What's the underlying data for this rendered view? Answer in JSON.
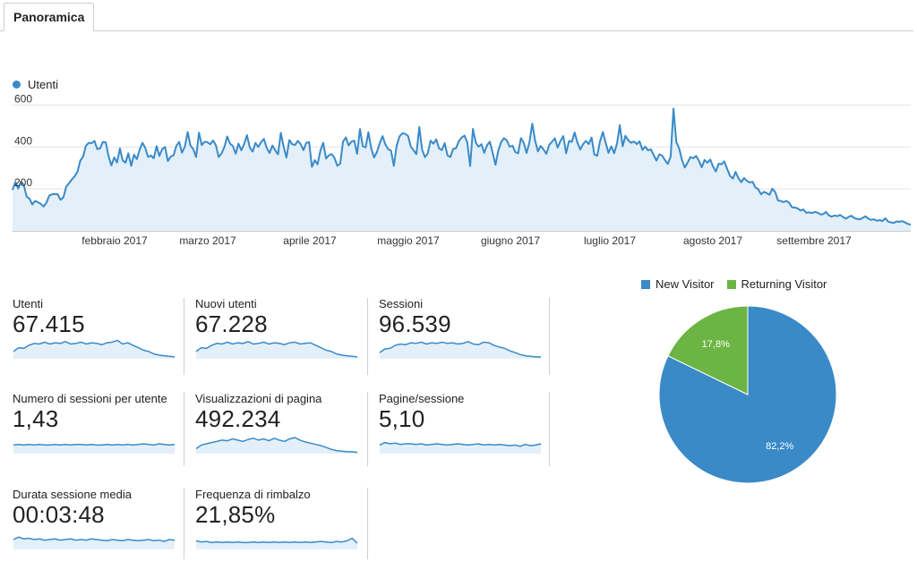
{
  "tab": {
    "label": "Panoramica"
  },
  "colors": {
    "accent": "#3a8ac8",
    "fill": "#e3f0f9",
    "grid": "#e3e3e3",
    "new_visitor": "#3a8ac8",
    "returning_visitor": "#6cb444"
  },
  "chart_data": [
    {
      "type": "line",
      "series": [
        {
          "name": "Utenti",
          "values": [
            195,
            233,
            202,
            234,
            219,
            163,
            153,
            126,
            143,
            136,
            129,
            116,
            134,
            168,
            174,
            176,
            174,
            148,
            160,
            210,
            227,
            245,
            260,
            282,
            335,
            355,
            406,
            420,
            418,
            429,
            390,
            393,
            424,
            422,
            356,
            312,
            350,
            326,
            393,
            336,
            325,
            370,
            310,
            363,
            342,
            386,
            420,
            395,
            353,
            359,
            346,
            404,
            357,
            390,
            400,
            333,
            354,
            360,
            405,
            424,
            373,
            401,
            471,
            406,
            389,
            352,
            468,
            409,
            425,
            423,
            413,
            431,
            408,
            352,
            370,
            400,
            450,
            416,
            405,
            368,
            416,
            384,
            414,
            456,
            398,
            378,
            419,
            400,
            423,
            438,
            395,
            371,
            407,
            384,
            365,
            467,
            400,
            350,
            433,
            413,
            409,
            429,
            414,
            385,
            420,
            423,
            305,
            337,
            317,
            383,
            420,
            345,
            360,
            366,
            347,
            310,
            320,
            425,
            446,
            407,
            426,
            430,
            367,
            485,
            403,
            398,
            470,
            392,
            350,
            376,
            417,
            452,
            412,
            389,
            383,
            310,
            407,
            450,
            465,
            463,
            453,
            402,
            383,
            366,
            495,
            389,
            351,
            370,
            430,
            416,
            436,
            393,
            385,
            418,
            360,
            352,
            390,
            394,
            427,
            445,
            454,
            422,
            309,
            486,
            421,
            401,
            413,
            372,
            408,
            425,
            371,
            315,
            384,
            424,
            442,
            431,
            401,
            406,
            376,
            370,
            442,
            419,
            371,
            422,
            511,
            431,
            379,
            405,
            388,
            367,
            410,
            425,
            441,
            397,
            429,
            452,
            370,
            428,
            424,
            469,
            421,
            388,
            414,
            429,
            414,
            445,
            364,
            358,
            428,
            471,
            419,
            372,
            403,
            370,
            416,
            504,
            403,
            453,
            432,
            420,
            426,
            414,
            427,
            386,
            402,
            384,
            389,
            361,
            335,
            365,
            359,
            337,
            319,
            354,
            583,
            424,
            393,
            339,
            302,
            325,
            352,
            346,
            357,
            335,
            303,
            338,
            325,
            340,
            307,
            283,
            320,
            318,
            331,
            296,
            263,
            249,
            281,
            251,
            232,
            252,
            238,
            231,
            234,
            207,
            199,
            174,
            186,
            180,
            172,
            201,
            186,
            145,
            142,
            137,
            143,
            133,
            112,
            111,
            107,
            97,
            102,
            86,
            88,
            85,
            90,
            87,
            78,
            80,
            90,
            74,
            68,
            73,
            70,
            76,
            66,
            58,
            66,
            72,
            61,
            57,
            55,
            62,
            69,
            58,
            52,
            55,
            48,
            51,
            47,
            60,
            44,
            40,
            38,
            45,
            43,
            46,
            40,
            33,
            30
          ]
        }
      ],
      "ylim": [
        0,
        640
      ],
      "y_ticks": [
        "600",
        "400",
        "200"
      ],
      "x_ticks": [
        "febbraio 2017",
        "marzo 2017",
        "aprile 2017",
        "maggio 2017",
        "giugno 2017",
        "luglio 2017",
        "agosto 2017",
        "settembre 2017"
      ]
    },
    {
      "type": "pie",
      "categories": [
        "New Visitor",
        "Returning Visitor"
      ],
      "values": [
        82.2,
        17.8
      ],
      "labels": [
        "82,2%",
        "17,8%"
      ]
    }
  ],
  "metrics": [
    {
      "label": "Utenti",
      "value": "67.415",
      "spark": [
        12,
        18,
        17,
        22,
        25,
        24,
        27,
        24,
        26,
        25,
        28,
        24,
        25,
        27,
        24,
        26,
        25,
        23,
        26,
        27,
        30,
        24,
        26,
        22,
        18,
        14,
        12,
        8,
        6,
        5,
        4,
        3
      ]
    },
    {
      "label": "Nuovi utenti",
      "value": "67.228",
      "spark": [
        12,
        18,
        17,
        22,
        25,
        24,
        27,
        24,
        26,
        25,
        28,
        24,
        25,
        27,
        24,
        26,
        25,
        23,
        26,
        27,
        24,
        25,
        26,
        22,
        18,
        14,
        12,
        8,
        6,
        5,
        4,
        3
      ]
    },
    {
      "label": "Sessioni",
      "value": "96.539",
      "spark": [
        10,
        16,
        17,
        22,
        24,
        23,
        26,
        25,
        27,
        24,
        26,
        25,
        27,
        25,
        26,
        24,
        25,
        28,
        24,
        23,
        27,
        26,
        22,
        19,
        17,
        13,
        10,
        7,
        5,
        4,
        3,
        3
      ]
    },
    {
      "label": "Numero di sessioni per utente",
      "value": "1,43",
      "spark": [
        14,
        15,
        14,
        15,
        14,
        15,
        14,
        14,
        15,
        14,
        15,
        14,
        15,
        15,
        14,
        15,
        14,
        14,
        15,
        14,
        15,
        14,
        15,
        14,
        15,
        16,
        15,
        14,
        16,
        15,
        14,
        15
      ]
    },
    {
      "label": "Visualizzazioni di pagina",
      "value": "492.234",
      "spark": [
        8,
        14,
        16,
        18,
        20,
        22,
        21,
        24,
        22,
        20,
        23,
        25,
        22,
        24,
        21,
        25,
        22,
        20,
        24,
        26,
        22,
        19,
        17,
        15,
        13,
        10,
        7,
        5,
        4,
        3,
        3,
        2
      ]
    },
    {
      "label": "Pagine/sessione",
      "value": "5,10",
      "spark": [
        14,
        18,
        16,
        17,
        15,
        16,
        16,
        15,
        16,
        14,
        15,
        16,
        15,
        14,
        15,
        16,
        15,
        14,
        15,
        16,
        14,
        15,
        14,
        15,
        14,
        13,
        14,
        12,
        15,
        13,
        14,
        16
      ]
    },
    {
      "label": "Durata sessione media",
      "value": "00:03:48",
      "spark": [
        16,
        20,
        17,
        18,
        16,
        17,
        15,
        16,
        17,
        15,
        16,
        17,
        15,
        16,
        15,
        17,
        16,
        15,
        14,
        16,
        15,
        14,
        16,
        15,
        14,
        15,
        16,
        14,
        15,
        13,
        16,
        15
      ]
    },
    {
      "label": "Frequenza di rimbalzo",
      "value": "21,85%",
      "spark": [
        14,
        12,
        13,
        11,
        12,
        11,
        12,
        11,
        12,
        11,
        11,
        12,
        11,
        12,
        11,
        12,
        11,
        12,
        11,
        12,
        11,
        12,
        11,
        12,
        13,
        12,
        11,
        13,
        12,
        14,
        18,
        10
      ]
    }
  ]
}
